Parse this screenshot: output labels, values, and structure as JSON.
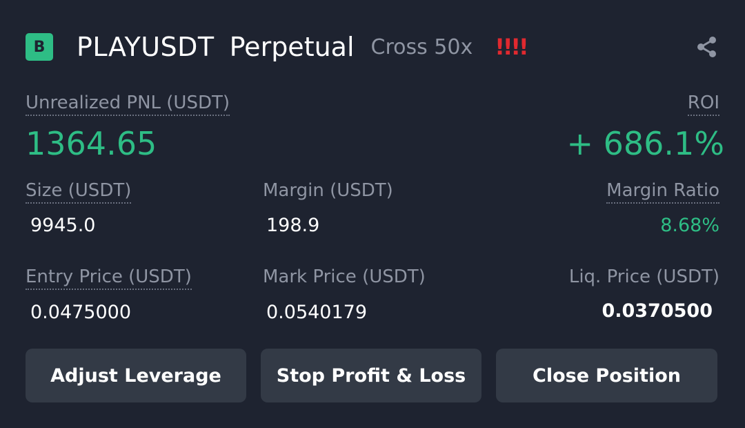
{
  "header": {
    "badge": "B",
    "symbol": "PLAYUSDT",
    "contract": "Perpetual",
    "margin_mode": "Cross 50x",
    "alert": "!!!!",
    "share_icon": "share-icon"
  },
  "pnl": {
    "label": "Unrealized PNL (USDT)",
    "value": "1364.65"
  },
  "roi": {
    "label": "ROI",
    "value": "+ 686.1%"
  },
  "size": {
    "label": "Size (USDT)",
    "value": "9945.0"
  },
  "margin": {
    "label": "Margin (USDT)",
    "value": "198.9"
  },
  "margin_ratio": {
    "label": "Margin Ratio",
    "value": "8.68%"
  },
  "entry_price": {
    "label": "Entry Price (USDT)",
    "value": "0.0475000"
  },
  "mark_price": {
    "label": "Mark Price (USDT)",
    "value": "0.0540179"
  },
  "liq_price": {
    "label": "Liq. Price (USDT)",
    "value": "0.0370500"
  },
  "buttons": {
    "adjust_leverage": "Adjust Leverage",
    "stop_profit_loss": "Stop Profit & Loss",
    "close_position": "Close Position"
  },
  "colors": {
    "background": "#1e2330",
    "positive": "#2ebd85",
    "alert": "#e0292f",
    "muted": "#8f95a3",
    "button": "#333a46"
  }
}
